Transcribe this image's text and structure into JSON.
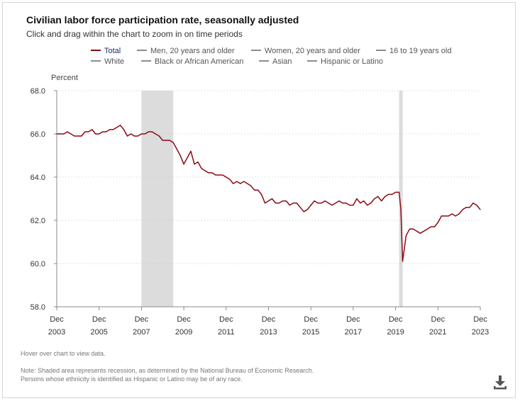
{
  "header": {
    "title": "Civilian labor force participation rate, seasonally adjusted",
    "subtitle": "Click and drag within the chart to zoom in on time periods"
  },
  "legend": {
    "items": [
      {
        "label": "Total",
        "active": true
      },
      {
        "label": "Men, 20 years and older",
        "active": false
      },
      {
        "label": "Women, 20 years and older",
        "active": false
      },
      {
        "label": "16 to 19 years old",
        "active": false
      },
      {
        "label": "White",
        "active": false
      },
      {
        "label": "Black or African American",
        "active": false
      },
      {
        "label": "Asian",
        "active": false
      },
      {
        "label": "Hispanic or Latino",
        "active": false
      }
    ]
  },
  "footer": {
    "hover_hint": "Hover over chart to view data.",
    "note_line1": "Note: Shaded area represents recession, as determined by the National Bureau of Economic Research.",
    "note_line2": "Persons whose ethnicity is identified as Hispanic or Latino may be of any race."
  },
  "colors": {
    "series": "#8b0a14",
    "recession": "#dcdcdc",
    "grid": "#c8c8c8",
    "inactive_swatch": "#8c8c8c"
  },
  "icons": {
    "download": "download-icon"
  },
  "chart_data": {
    "type": "line",
    "title": "Civilian labor force participation rate, seasonally adjusted",
    "subtitle": "Click and drag within the chart to zoom in on time periods",
    "ylabel": "Percent",
    "ylim": [
      58.0,
      68.0
    ],
    "yticks": [
      "58.0",
      "60.0",
      "62.0",
      "64.0",
      "66.0",
      "68.0"
    ],
    "xlim": [
      "2003-12",
      "2023-12"
    ],
    "xticks": [
      {
        "month": "Dec",
        "year": "2003"
      },
      {
        "month": "Dec",
        "year": "2005"
      },
      {
        "month": "Dec",
        "year": "2007"
      },
      {
        "month": "Dec",
        "year": "2009"
      },
      {
        "month": "Dec",
        "year": "2011"
      },
      {
        "month": "Dec",
        "year": "2013"
      },
      {
        "month": "Dec",
        "year": "2015"
      },
      {
        "month": "Dec",
        "year": "2017"
      },
      {
        "month": "Dec",
        "year": "2019"
      },
      {
        "month": "Dec",
        "year": "2021"
      },
      {
        "month": "Dec",
        "year": "2023"
      }
    ],
    "grid": true,
    "legend_position": "top",
    "recessions": [
      {
        "start": "2007-12",
        "end": "2009-06"
      },
      {
        "start": "2020-02",
        "end": "2020-04"
      }
    ],
    "series": [
      {
        "name": "Total",
        "points": [
          [
            "2003-12",
            66.0
          ],
          [
            "2004-02",
            66.0
          ],
          [
            "2004-04",
            66.0
          ],
          [
            "2004-06",
            66.1
          ],
          [
            "2004-08",
            66.0
          ],
          [
            "2004-10",
            65.9
          ],
          [
            "2004-12",
            65.9
          ],
          [
            "2005-02",
            65.9
          ],
          [
            "2005-04",
            66.1
          ],
          [
            "2005-06",
            66.1
          ],
          [
            "2005-08",
            66.2
          ],
          [
            "2005-10",
            66.0
          ],
          [
            "2005-12",
            66.0
          ],
          [
            "2006-02",
            66.1
          ],
          [
            "2006-04",
            66.1
          ],
          [
            "2006-06",
            66.2
          ],
          [
            "2006-08",
            66.2
          ],
          [
            "2006-10",
            66.3
          ],
          [
            "2006-12",
            66.4
          ],
          [
            "2007-02",
            66.2
          ],
          [
            "2007-04",
            65.9
          ],
          [
            "2007-06",
            66.0
          ],
          [
            "2007-08",
            65.9
          ],
          [
            "2007-10",
            65.9
          ],
          [
            "2007-12",
            66.0
          ],
          [
            "2008-02",
            66.0
          ],
          [
            "2008-04",
            66.1
          ],
          [
            "2008-06",
            66.1
          ],
          [
            "2008-08",
            66.0
          ],
          [
            "2008-10",
            65.9
          ],
          [
            "2008-12",
            65.7
          ],
          [
            "2009-02",
            65.7
          ],
          [
            "2009-04",
            65.7
          ],
          [
            "2009-06",
            65.6
          ],
          [
            "2009-08",
            65.3
          ],
          [
            "2009-10",
            65.0
          ],
          [
            "2009-12",
            64.6
          ],
          [
            "2010-02",
            64.9
          ],
          [
            "2010-04",
            65.2
          ],
          [
            "2010-06",
            64.6
          ],
          [
            "2010-08",
            64.7
          ],
          [
            "2010-10",
            64.4
          ],
          [
            "2010-12",
            64.3
          ],
          [
            "2011-02",
            64.2
          ],
          [
            "2011-04",
            64.2
          ],
          [
            "2011-06",
            64.1
          ],
          [
            "2011-08",
            64.1
          ],
          [
            "2011-10",
            64.1
          ],
          [
            "2011-12",
            64.0
          ],
          [
            "2012-02",
            63.9
          ],
          [
            "2012-04",
            63.7
          ],
          [
            "2012-06",
            63.8
          ],
          [
            "2012-08",
            63.7
          ],
          [
            "2012-10",
            63.8
          ],
          [
            "2012-12",
            63.7
          ],
          [
            "2013-02",
            63.6
          ],
          [
            "2013-04",
            63.4
          ],
          [
            "2013-06",
            63.4
          ],
          [
            "2013-08",
            63.2
          ],
          [
            "2013-10",
            62.8
          ],
          [
            "2013-12",
            62.9
          ],
          [
            "2014-02",
            63.0
          ],
          [
            "2014-04",
            62.8
          ],
          [
            "2014-06",
            62.8
          ],
          [
            "2014-08",
            62.9
          ],
          [
            "2014-10",
            62.9
          ],
          [
            "2014-12",
            62.7
          ],
          [
            "2015-02",
            62.8
          ],
          [
            "2015-04",
            62.8
          ],
          [
            "2015-06",
            62.6
          ],
          [
            "2015-08",
            62.4
          ],
          [
            "2015-10",
            62.5
          ],
          [
            "2015-12",
            62.7
          ],
          [
            "2016-02",
            62.9
          ],
          [
            "2016-04",
            62.8
          ],
          [
            "2016-06",
            62.8
          ],
          [
            "2016-08",
            62.9
          ],
          [
            "2016-10",
            62.8
          ],
          [
            "2016-12",
            62.7
          ],
          [
            "2017-02",
            62.8
          ],
          [
            "2017-04",
            62.9
          ],
          [
            "2017-06",
            62.8
          ],
          [
            "2017-08",
            62.8
          ],
          [
            "2017-10",
            62.7
          ],
          [
            "2017-12",
            62.7
          ],
          [
            "2018-02",
            63.0
          ],
          [
            "2018-04",
            62.8
          ],
          [
            "2018-06",
            62.9
          ],
          [
            "2018-08",
            62.7
          ],
          [
            "2018-10",
            62.8
          ],
          [
            "2018-12",
            63.0
          ],
          [
            "2019-02",
            63.1
          ],
          [
            "2019-04",
            62.9
          ],
          [
            "2019-06",
            63.1
          ],
          [
            "2019-08",
            63.2
          ],
          [
            "2019-10",
            63.2
          ],
          [
            "2019-12",
            63.3
          ],
          [
            "2020-01",
            63.3
          ],
          [
            "2020-02",
            63.3
          ],
          [
            "2020-03",
            62.5
          ],
          [
            "2020-04",
            60.1
          ],
          [
            "2020-06",
            61.3
          ],
          [
            "2020-08",
            61.6
          ],
          [
            "2020-10",
            61.6
          ],
          [
            "2020-12",
            61.5
          ],
          [
            "2021-02",
            61.4
          ],
          [
            "2021-04",
            61.5
          ],
          [
            "2021-06",
            61.6
          ],
          [
            "2021-08",
            61.7
          ],
          [
            "2021-10",
            61.7
          ],
          [
            "2021-12",
            61.9
          ],
          [
            "2022-02",
            62.2
          ],
          [
            "2022-04",
            62.2
          ],
          [
            "2022-06",
            62.2
          ],
          [
            "2022-08",
            62.3
          ],
          [
            "2022-10",
            62.2
          ],
          [
            "2022-12",
            62.3
          ],
          [
            "2023-02",
            62.5
          ],
          [
            "2023-04",
            62.6
          ],
          [
            "2023-06",
            62.6
          ],
          [
            "2023-08",
            62.8
          ],
          [
            "2023-10",
            62.7
          ],
          [
            "2023-12",
            62.5
          ]
        ]
      }
    ]
  }
}
